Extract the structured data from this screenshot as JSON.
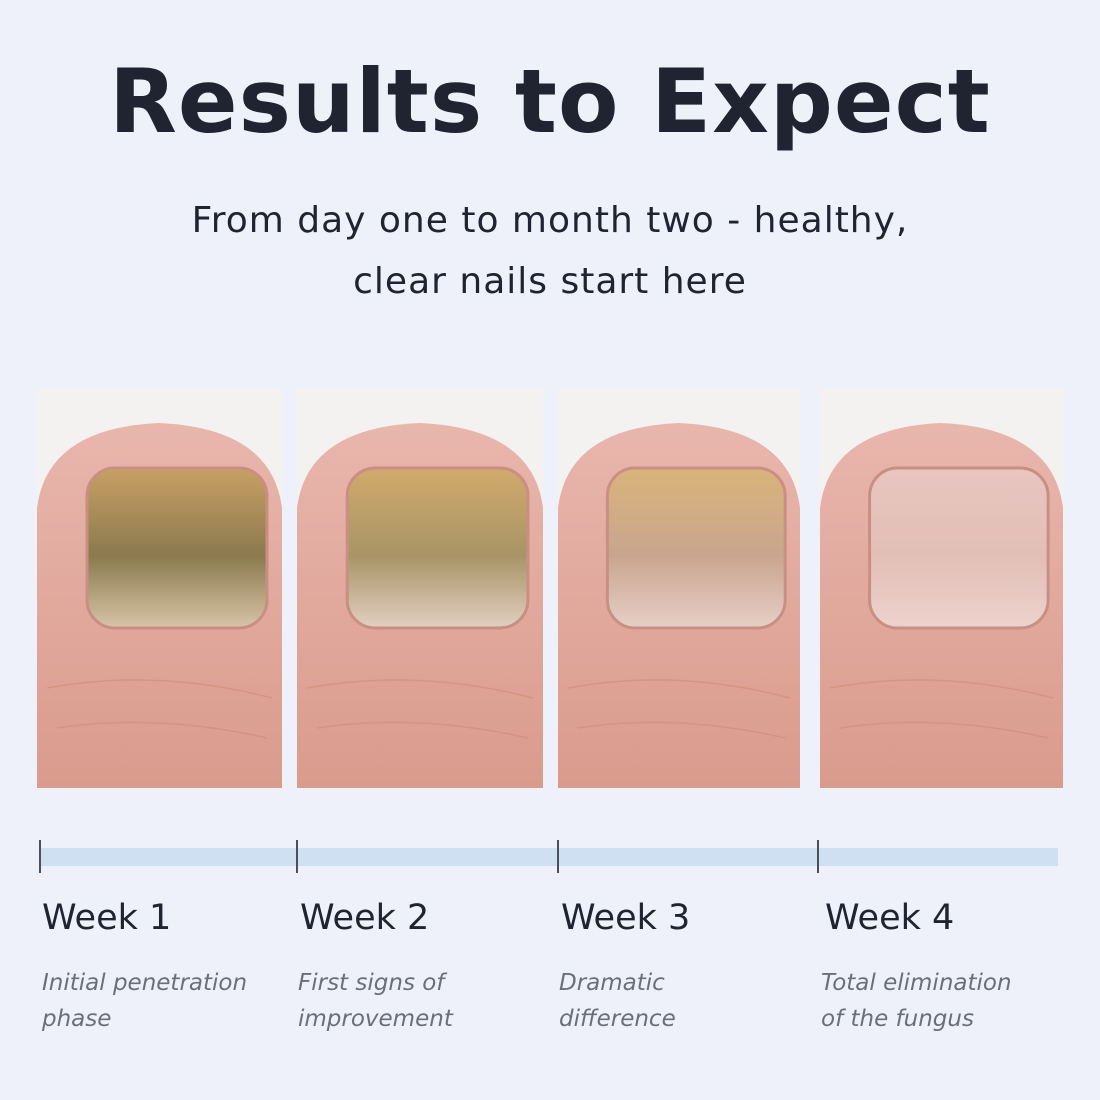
{
  "header": {
    "title": "Results to Expect",
    "subtitle_line1": "From day one to month two - healthy,",
    "subtitle_line2": "clear nails start here"
  },
  "colors": {
    "background": "#eef1fa",
    "timeline_bar": "#cfe0f3",
    "text": "#1f2430",
    "description": "#6b6f78"
  },
  "steps": [
    {
      "label": "Week 1",
      "desc_line1": "Initial penetration",
      "desc_line2": "phase",
      "nail_state": "heavily infected"
    },
    {
      "label": "Week 2",
      "desc_line1": "First signs of",
      "desc_line2": "improvement",
      "nail_state": "infected, improving"
    },
    {
      "label": "Week 3",
      "desc_line1": "Dramatic",
      "desc_line2": "difference",
      "nail_state": "mostly cleared"
    },
    {
      "label": "Week 4",
      "desc_line1": "Total elimination",
      "desc_line2": "of the fungus",
      "nail_state": "healthy"
    }
  ]
}
